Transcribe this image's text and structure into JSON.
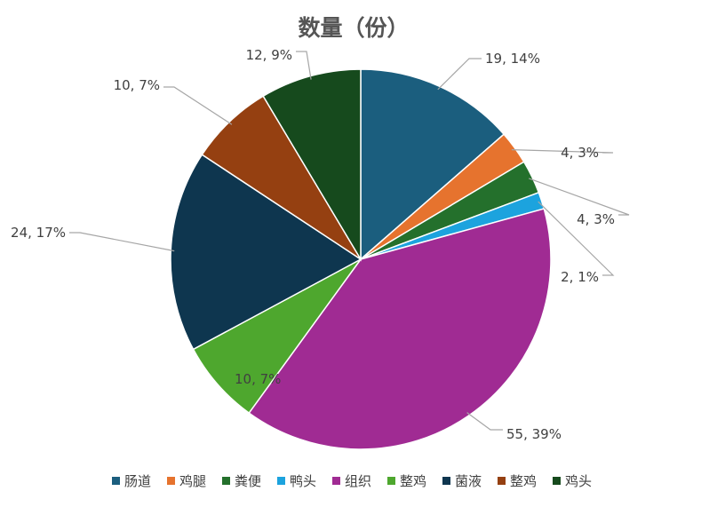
{
  "chart_data": {
    "type": "pie",
    "title": "数量（份）",
    "slices": [
      {
        "name": "肠道",
        "value": 19,
        "percent": "14%",
        "label": "19, 14%",
        "color": "#1B5E7E"
      },
      {
        "name": "鸡腿",
        "value": 4,
        "percent": "3%",
        "label": "4, 3%",
        "color": "#E6732E"
      },
      {
        "name": "粪便",
        "value": 4,
        "percent": "3%",
        "label": "4, 3%",
        "color": "#24702C"
      },
      {
        "name": "鸭头",
        "value": 2,
        "percent": "1%",
        "label": "2, 1%",
        "color": "#1CA3DE"
      },
      {
        "name": "组织",
        "value": 55,
        "percent": "39%",
        "label": "55, 39%",
        "color": "#A02B93"
      },
      {
        "name": "整鸡",
        "value": 10,
        "percent": "7%",
        "label": "10, 7%",
        "color": "#4EA72E"
      },
      {
        "name": "菌液",
        "value": 24,
        "percent": "17%",
        "label": "24, 17%",
        "color": "#0E364F"
      },
      {
        "name": "整鸡",
        "value": 10,
        "percent": "7%",
        "label": "10, 7%",
        "color": "#954011"
      },
      {
        "name": "鸡头",
        "value": 12,
        "percent": "9%",
        "label": "12, 9%",
        "color": "#164A1D"
      }
    ],
    "legend_position": "bottom"
  }
}
